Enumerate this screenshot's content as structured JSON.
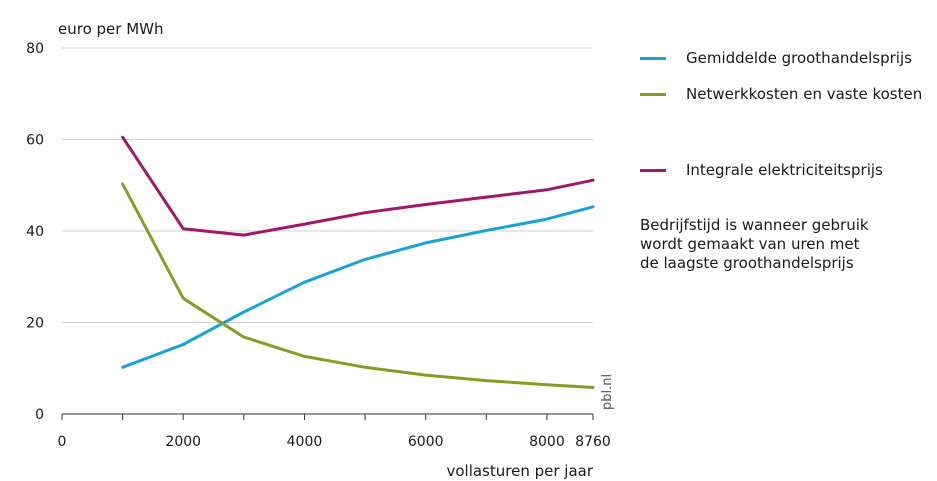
{
  "chart_data": {
    "type": "line",
    "ylabel": "euro per MWh",
    "xlabel": "vollasturen per jaar",
    "xlim": [
      0,
      8760
    ],
    "ylim": [
      0,
      80
    ],
    "x_ticks": [
      0,
      2000,
      4000,
      6000,
      8000,
      8760
    ],
    "x_tick_labels": [
      "0",
      "2000",
      "4000",
      "6000",
      "8000",
      "8760"
    ],
    "y_ticks": [
      0,
      20,
      40,
      60,
      80
    ],
    "y_tick_labels": [
      "0",
      "20",
      "40",
      "60",
      "80"
    ],
    "grid": "horizontal",
    "legend_position": "right",
    "series": [
      {
        "name": "Gemiddelde groothandelsprijs",
        "color": "#1aa1dc",
        "x": [
          1000,
          2000,
          3000,
          4000,
          5000,
          6000,
          7000,
          8000,
          8760
        ],
        "values": [
          10.2,
          15.2,
          22.3,
          28.8,
          33.8,
          37.4,
          40.1,
          42.6,
          45.3
        ]
      },
      {
        "name": "Netwerkkosten en vaste kosten",
        "color": "#8a9a24",
        "x": [
          1000,
          2000,
          3000,
          4000,
          5000,
          6000,
          7000,
          8000,
          8760
        ],
        "values": [
          50.3,
          25.3,
          16.8,
          12.6,
          10.2,
          8.5,
          7.3,
          6.4,
          5.8
        ]
      },
      {
        "name": "Integrale elektriciteitsprijs",
        "color": "#a0176f",
        "x": [
          1000,
          2000,
          3000,
          4000,
          5000,
          6000,
          7000,
          8000,
          8760
        ],
        "values": [
          60.5,
          40.5,
          39.1,
          41.5,
          44.0,
          45.8,
          47.4,
          49.0,
          51.1
        ]
      }
    ],
    "annotation": [
      "Bedrijfstijd is wanneer gebruik",
      "wordt gemaakt van uren met",
      "de laagste groothandelsprijs"
    ],
    "watermark": "pbl.nl"
  }
}
